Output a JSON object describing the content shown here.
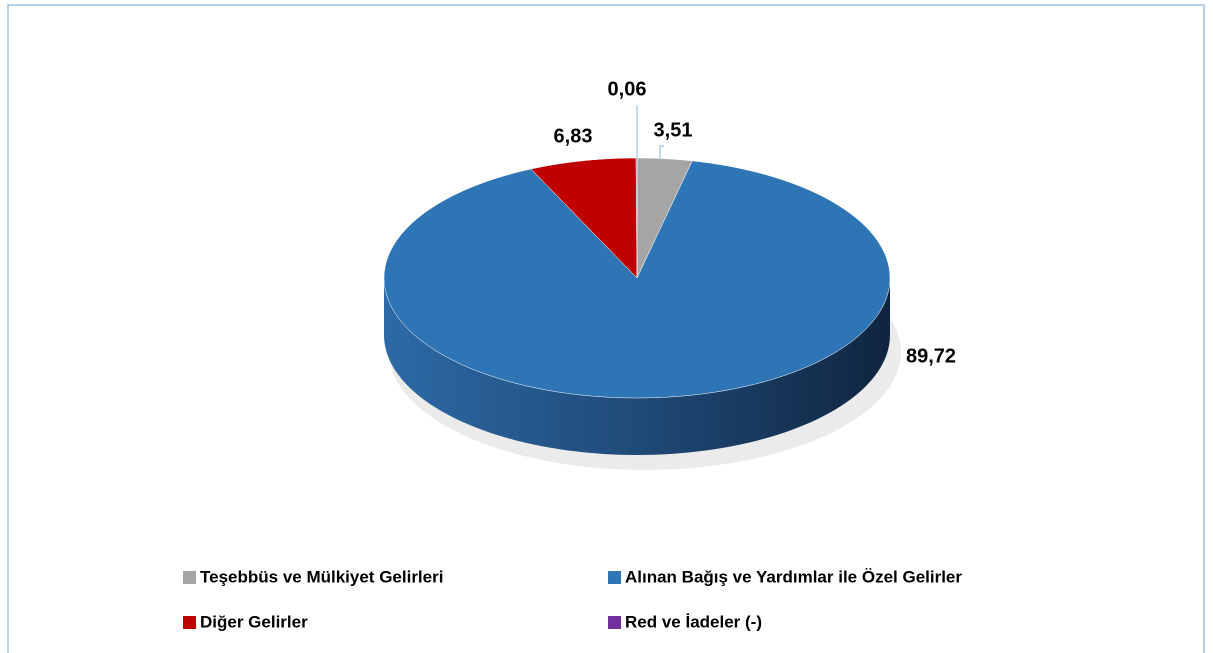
{
  "chart_data": {
    "type": "pie3d",
    "categories": [
      "Teşebbüs ve Mülkiyet Gelirleri",
      "Alınan Bağış ve Yardımlar ile Özel Gelirler",
      "Diğer Gelirler",
      "Red ve İadeler (-)"
    ],
    "values": [
      3.51,
      89.72,
      6.83,
      0.06
    ],
    "value_labels": [
      "3,51",
      "89,72",
      "6,83",
      "0,06"
    ],
    "colors": [
      "#a5a5a5",
      "#2e75b6",
      "#c00000",
      "#7030a0"
    ],
    "legend": "bottom"
  }
}
